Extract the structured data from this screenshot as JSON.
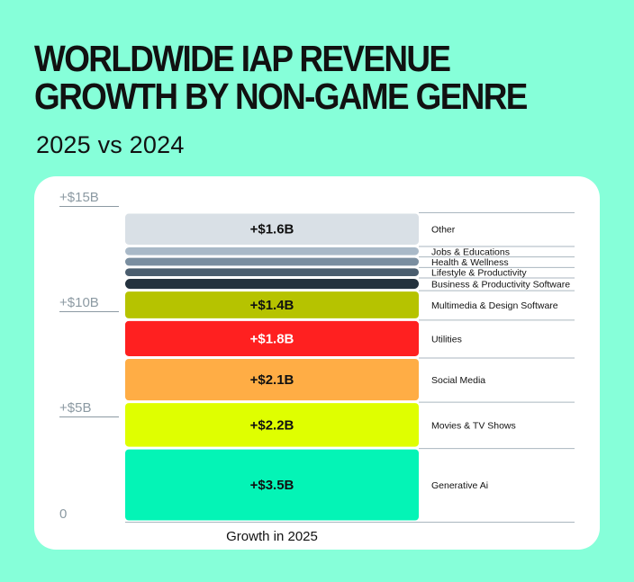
{
  "title_lines": [
    "WORLDWIDE IAP REVENUE",
    "GROWTH BY NON-GAME GENRE"
  ],
  "subtitle": "2025 vs 2024",
  "chart_data": {
    "type": "bar",
    "stacked": true,
    "title": "WORLDWIDE IAP REVENUE GROWTH BY NON-GAME GENRE",
    "subtitle": "2025 vs 2024",
    "categories": [
      "Growth in 2025"
    ],
    "xlabel": "Growth in 2025",
    "ylabel": "",
    "ylim": [
      0,
      15
    ],
    "yticks": [
      {
        "value": 0,
        "label": "0"
      },
      {
        "value": 5,
        "label": "+$5B"
      },
      {
        "value": 10,
        "label": "+$10B"
      },
      {
        "value": 15,
        "label": "+$15B"
      }
    ],
    "legend_position": "right",
    "series": [
      {
        "name": "Generative Ai",
        "value": 3.5,
        "label": "+$3.5B",
        "color": "#04f4b6",
        "text_color": "#111111"
      },
      {
        "name": "Movies & TV Shows",
        "value": 2.2,
        "label": "+$2.2B",
        "color": "#dfff00",
        "text_color": "#111111"
      },
      {
        "name": "Social Media",
        "value": 2.1,
        "label": "+$2.1B",
        "color": "#ffad45",
        "text_color": "#111111"
      },
      {
        "name": "Utilities",
        "value": 1.8,
        "label": "+$1.8B",
        "color": "#ff2020",
        "text_color": "#ffffff"
      },
      {
        "name": "Multimedia & Design Software",
        "value": 1.4,
        "label": "+$1.4B",
        "color": "#b6c300",
        "text_color": "#111111"
      },
      {
        "name": "Business & Productivity Software",
        "value": 0.6,
        "label": "",
        "color": "#24323e",
        "text_color": "#ffffff"
      },
      {
        "name": "Lifestyle & Productivity",
        "value": 0.5,
        "label": "",
        "color": "#4a5d6e",
        "text_color": "#ffffff"
      },
      {
        "name": "Health & Wellness",
        "value": 0.5,
        "label": "",
        "color": "#7a8ea0",
        "text_color": "#ffffff"
      },
      {
        "name": "Jobs & Educations",
        "value": 0.5,
        "label": "",
        "color": "#a9b9c8",
        "text_color": "#111111"
      },
      {
        "name": "Other",
        "value": 1.6,
        "label": "+$1.6B",
        "color": "#d9e0e6",
        "text_color": "#111111"
      }
    ]
  }
}
